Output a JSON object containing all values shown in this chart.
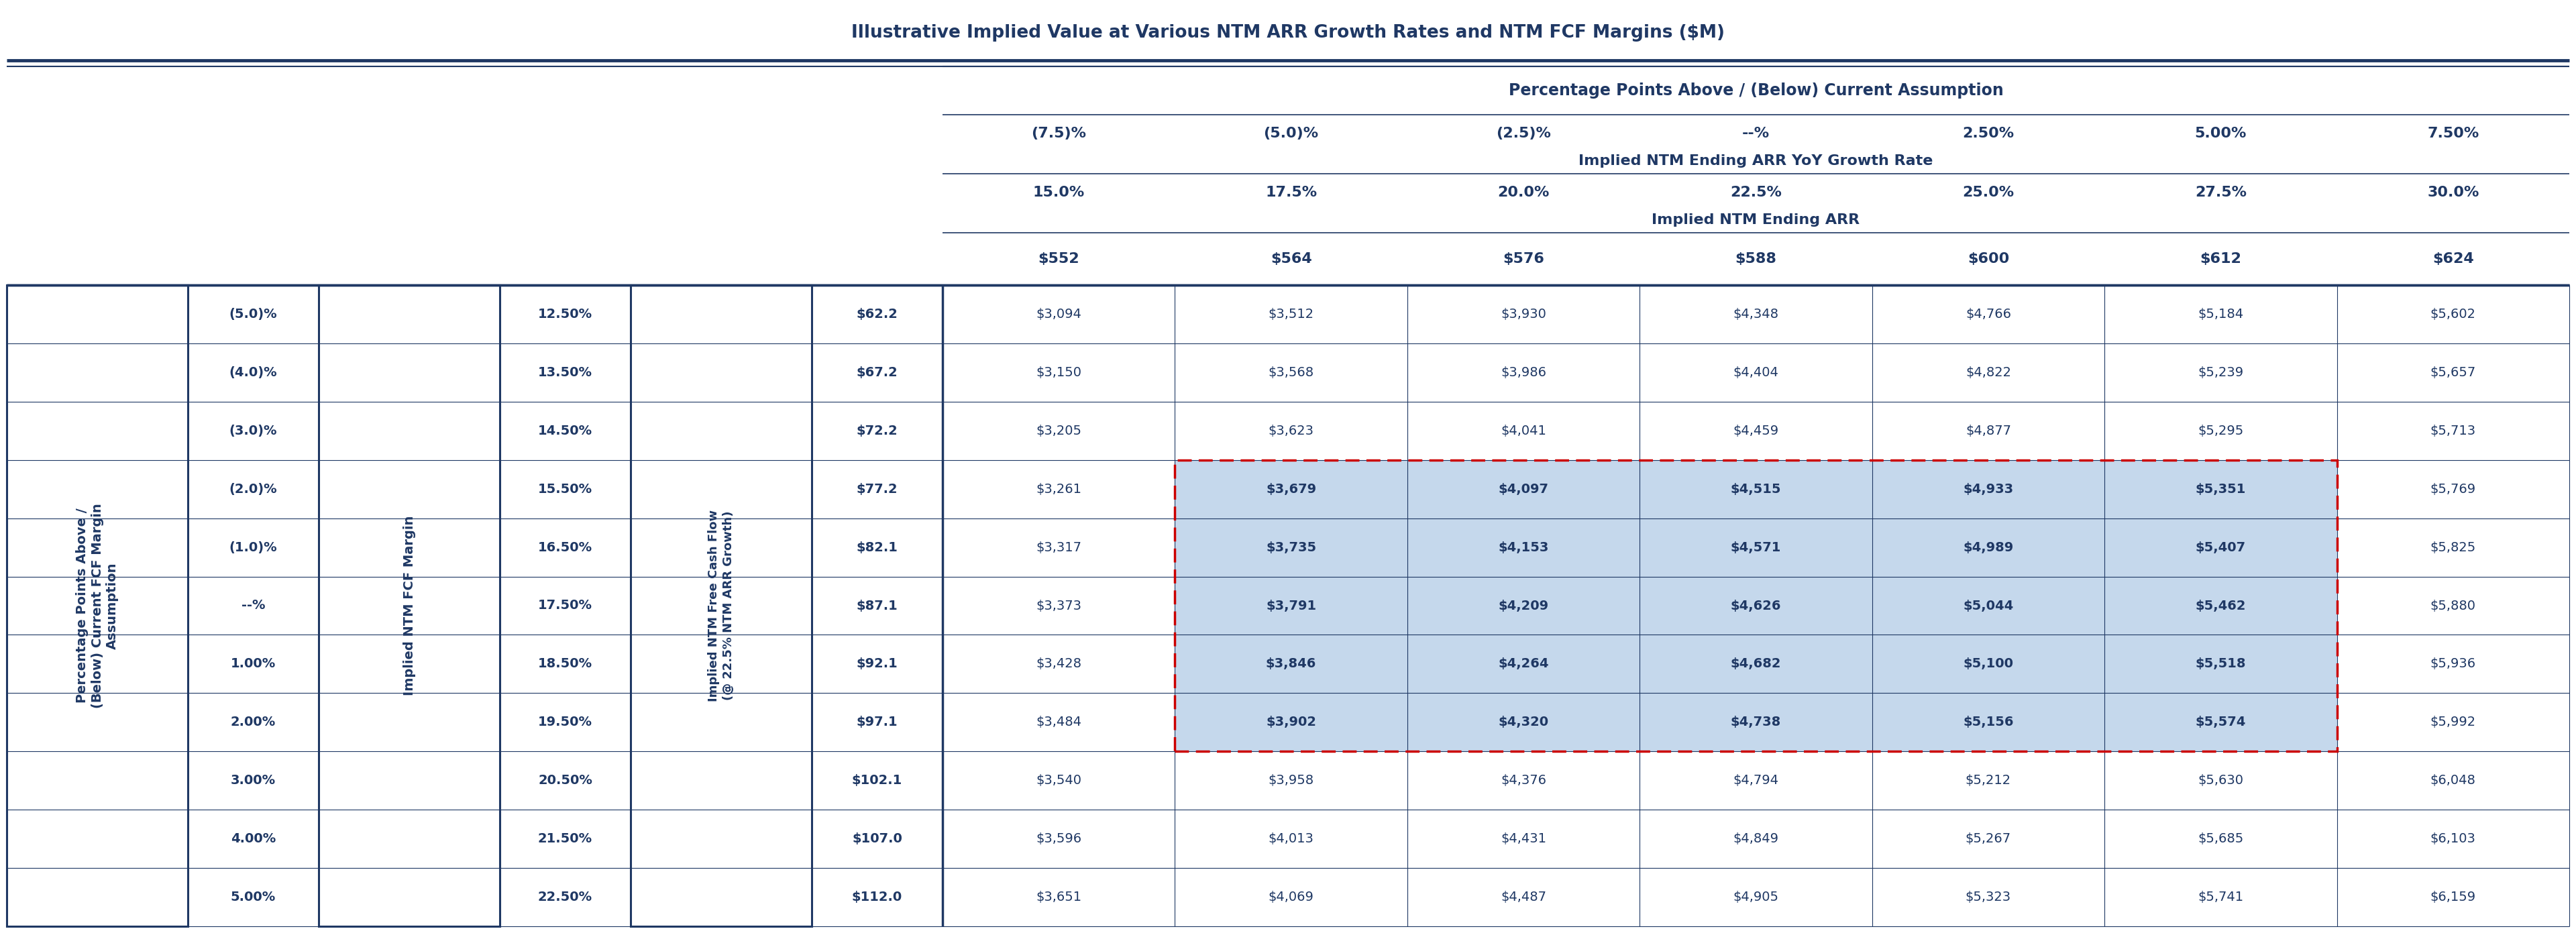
{
  "title": "Illustrative Implied Value at Various NTM ARR Growth Rates and NTM FCF Margins ($M)",
  "dark_blue": "#1F3864",
  "bg_color": "#FFFFFF",
  "highlight_bg": "#C5D8EC",
  "col_header1": "Percentage Points Above / (Below) Current Assumption",
  "col_header2_vals": [
    "(7.5)%",
    "(5.0)%",
    "(2.5)%",
    "--%",
    "2.50%",
    "5.00%",
    "7.50%"
  ],
  "col_header3": "Implied NTM Ending ARR YoY Growth Rate",
  "col_header4_vals": [
    "15.0%",
    "17.5%",
    "20.0%",
    "22.5%",
    "25.0%",
    "27.5%",
    "30.0%"
  ],
  "col_header5": "Implied NTM Ending ARR",
  "col_header6_vals": [
    "$552",
    "$564",
    "$576",
    "$588",
    "$600",
    "$612",
    "$624"
  ],
  "row_label1": "Percentage Points Above /\n(Below) Current FCF Margin\nAssumption",
  "row_label2_vals": [
    "(5.0)%",
    "(4.0)%",
    "(3.0)%",
    "(2.0)%",
    "(1.0)%",
    "--%",
    "1.00%",
    "2.00%",
    "3.00%",
    "4.00%",
    "5.00%"
  ],
  "row_label3": "Implied NTM FCF Margin",
  "row_label4_vals": [
    "12.50%",
    "13.50%",
    "14.50%",
    "15.50%",
    "16.50%",
    "17.50%",
    "18.50%",
    "19.50%",
    "20.50%",
    "21.50%",
    "22.50%"
  ],
  "row_label5": "Implied NTM Free Cash Flow\n(@ 22.5% NTM ARR Growth)",
  "row_label6_vals": [
    "$62.2",
    "$67.2",
    "$72.2",
    "$77.2",
    "$82.1",
    "$87.1",
    "$92.1",
    "$97.1",
    "$102.1",
    "$107.0",
    "$112.0"
  ],
  "data": [
    [
      "$3,094",
      "$3,512",
      "$3,930",
      "$4,348",
      "$4,766",
      "$5,184",
      "$5,602"
    ],
    [
      "$3,150",
      "$3,568",
      "$3,986",
      "$4,404",
      "$4,822",
      "$5,239",
      "$5,657"
    ],
    [
      "$3,205",
      "$3,623",
      "$4,041",
      "$4,459",
      "$4,877",
      "$5,295",
      "$5,713"
    ],
    [
      "$3,261",
      "$3,679",
      "$4,097",
      "$4,515",
      "$4,933",
      "$5,351",
      "$5,769"
    ],
    [
      "$3,317",
      "$3,735",
      "$4,153",
      "$4,571",
      "$4,989",
      "$5,407",
      "$5,825"
    ],
    [
      "$3,373",
      "$3,791",
      "$4,209",
      "$4,626",
      "$5,044",
      "$5,462",
      "$5,880"
    ],
    [
      "$3,428",
      "$3,846",
      "$4,264",
      "$4,682",
      "$5,100",
      "$5,518",
      "$5,936"
    ],
    [
      "$3,484",
      "$3,902",
      "$4,320",
      "$4,738",
      "$5,156",
      "$5,574",
      "$5,992"
    ],
    [
      "$3,540",
      "$3,958",
      "$4,376",
      "$4,794",
      "$5,212",
      "$5,630",
      "$6,048"
    ],
    [
      "$3,596",
      "$4,013",
      "$4,431",
      "$4,849",
      "$5,267",
      "$5,685",
      "$6,103"
    ],
    [
      "$3,651",
      "$4,069",
      "$4,487",
      "$4,905",
      "$5,323",
      "$5,741",
      "$6,159"
    ]
  ],
  "highlighted_rows": [
    3,
    4,
    5,
    6,
    7
  ],
  "highlighted_cols": [
    1,
    2,
    3,
    4,
    5
  ],
  "n_data_rows": 11,
  "n_data_cols": 7
}
